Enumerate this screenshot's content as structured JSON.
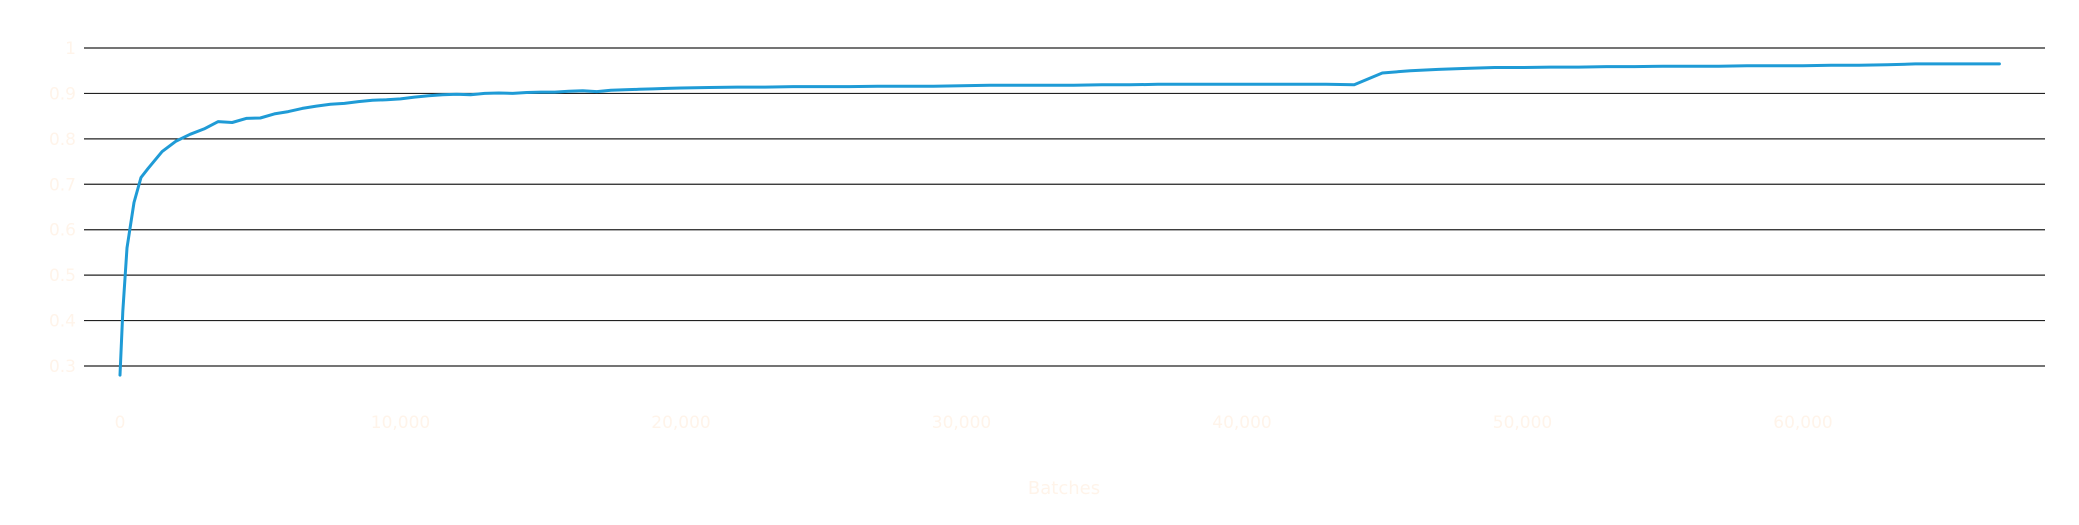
{
  "chart_data": {
    "type": "line",
    "title": "",
    "xlabel": "Batches",
    "ylabel": "",
    "xlim": [
      0,
      68000
    ],
    "ylim": [
      0.28,
      1.0
    ],
    "x_ticks": [
      0,
      10000,
      20000,
      30000,
      40000,
      50000,
      60000
    ],
    "x_tick_labels": [
      "0",
      "10,000",
      "20,000",
      "30,000",
      "40,000",
      "50,000",
      "60,000"
    ],
    "y_ticks": [
      0.3,
      0.4,
      0.5,
      0.6,
      0.7,
      0.8,
      0.9,
      1.0
    ],
    "y_tick_labels": [
      "0.3",
      "0.4",
      "0.5",
      "0.6",
      "0.7",
      "0.8",
      "0.9",
      "1"
    ],
    "grid": "horizontal",
    "colors": {
      "line": "#1f9bd6",
      "grid": "#222222",
      "tick_label": "#fff4ea",
      "axis_title": "#fff4ea"
    },
    "series": [
      {
        "x": [
          0,
          100,
          250,
          500,
          750,
          1000,
          1500,
          2000,
          2500,
          3000,
          3500,
          4000,
          4500,
          5000,
          5500,
          6000,
          6500,
          7000,
          7500,
          8000,
          8500,
          9000,
          9500,
          10000,
          10500,
          11000,
          11500,
          12000,
          12500,
          13000,
          13500,
          14000,
          14500,
          15000,
          15500,
          16000,
          16500,
          17000,
          17500,
          18000,
          18500,
          19000,
          19500,
          20000,
          21000,
          22000,
          23000,
          24000,
          25000,
          26000,
          27000,
          28000,
          29000,
          30000,
          31000,
          32000,
          33000,
          34000,
          35000,
          36000,
          37000,
          38000,
          39000,
          40000,
          41000,
          42000,
          43000,
          44000,
          45000,
          46000,
          47000,
          48000,
          49000,
          50000,
          51000,
          52000,
          53000,
          54000,
          55000,
          56000,
          57000,
          58000,
          59000,
          60000,
          61000,
          62000,
          63000,
          64000,
          65000,
          66000,
          67000
        ],
        "values": [
          0.28,
          0.42,
          0.56,
          0.66,
          0.715,
          0.735,
          0.772,
          0.795,
          0.81,
          0.822,
          0.838,
          0.836,
          0.845,
          0.846,
          0.855,
          0.86,
          0.867,
          0.872,
          0.876,
          0.878,
          0.882,
          0.885,
          0.886,
          0.888,
          0.892,
          0.895,
          0.897,
          0.898,
          0.897,
          0.9,
          0.901,
          0.9,
          0.902,
          0.903,
          0.903,
          0.905,
          0.906,
          0.904,
          0.907,
          0.908,
          0.909,
          0.91,
          0.911,
          0.912,
          0.913,
          0.914,
          0.914,
          0.915,
          0.915,
          0.915,
          0.916,
          0.916,
          0.916,
          0.917,
          0.918,
          0.918,
          0.918,
          0.918,
          0.919,
          0.919,
          0.92,
          0.92,
          0.92,
          0.92,
          0.92,
          0.92,
          0.92,
          0.919,
          0.945,
          0.95,
          0.953,
          0.955,
          0.957,
          0.957,
          0.958,
          0.958,
          0.959,
          0.959,
          0.96,
          0.96,
          0.96,
          0.961,
          0.961,
          0.961,
          0.962,
          0.962,
          0.963,
          0.965,
          0.965,
          0.965,
          0.965
        ]
      }
    ]
  }
}
